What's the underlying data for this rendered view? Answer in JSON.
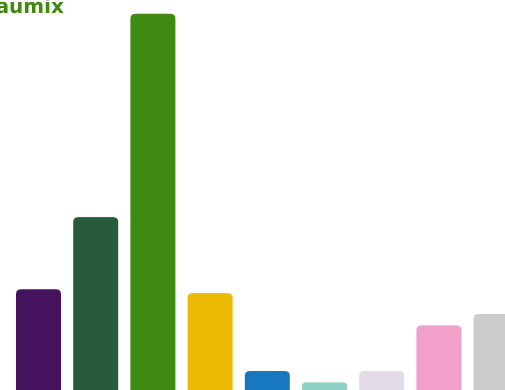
{
  "chart_data": {
    "type": "bar",
    "title": "eaumix",
    "title_color": "#3f8a10",
    "xlabel": "",
    "ylabel": "",
    "grid": false,
    "ylim": [
      0,
      100
    ],
    "series": [
      {
        "values": [
          26.5,
          45.5,
          99,
          25.5,
          5,
          2,
          5,
          17,
          20
        ],
        "colors": [
          "#45125e",
          "#285b3a",
          "#3f8a10",
          "#ebb904",
          "#1878bf",
          "#8fd1c4",
          "#e3dce8",
          "#f1a0c9",
          "#cccccc"
        ]
      }
    ]
  }
}
